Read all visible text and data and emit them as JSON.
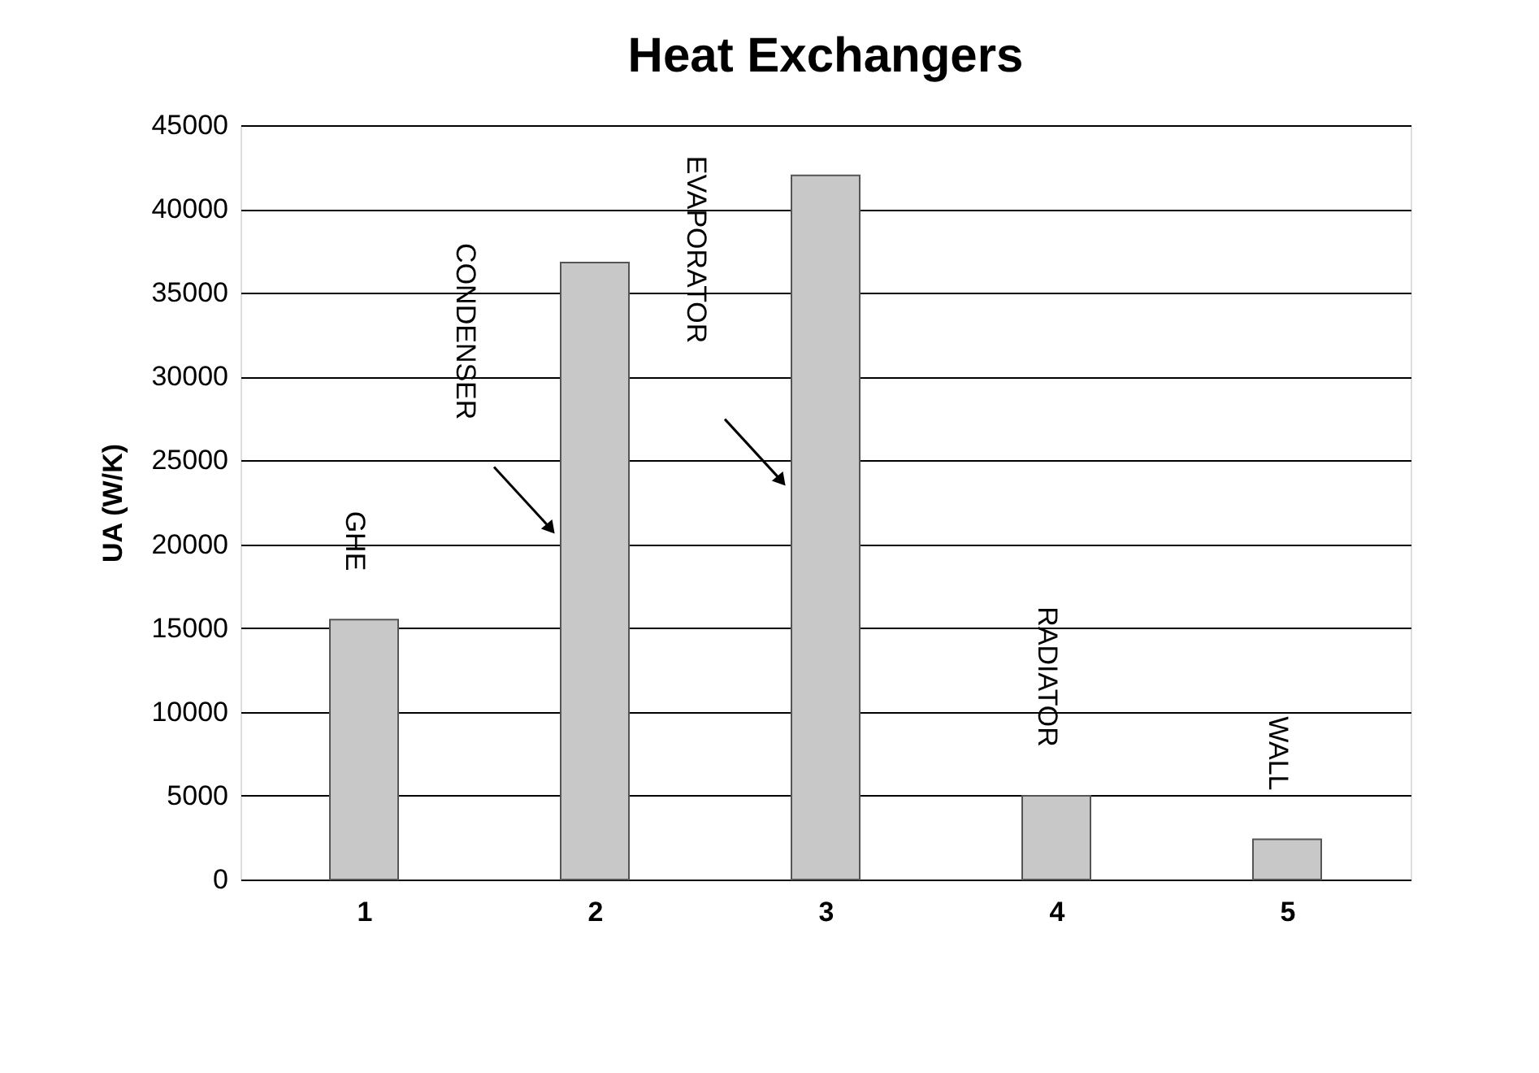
{
  "chart_data": {
    "type": "bar",
    "title": "Heat Exchangers",
    "ylabel": "UA (W/K)",
    "categories": [
      "1",
      "2",
      "3",
      "4",
      "5"
    ],
    "values": [
      15500,
      36800,
      42000,
      5000,
      2400
    ],
    "color": "#c8c8c8",
    "ylim": [
      0,
      45000
    ],
    "yticks": [
      0,
      5000,
      10000,
      15000,
      20000,
      25000,
      30000,
      35000,
      40000,
      45000
    ],
    "grid": "y",
    "annotations": [
      "GHE",
      "CONDENSER",
      "EVAPORATOR",
      "RADIATOR",
      "WALL"
    ]
  }
}
